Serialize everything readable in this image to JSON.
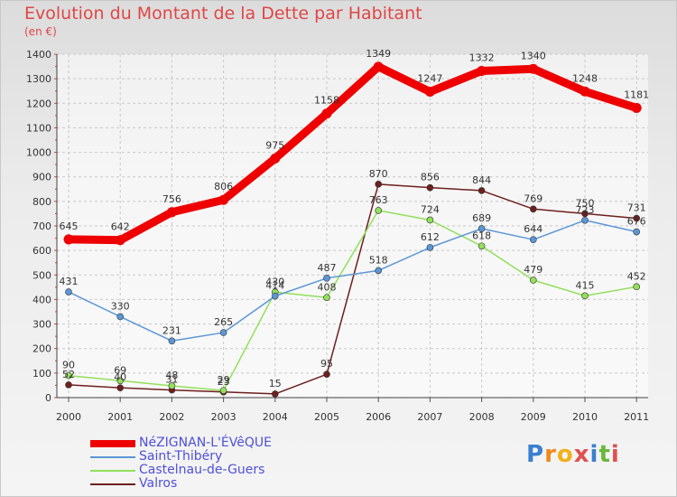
{
  "header": {
    "title": "Evolution du Montant de la Dette par Habitant",
    "subtitle": "(en €)"
  },
  "brand": {
    "text": "Proxiti"
  },
  "chart_data": {
    "type": "line",
    "title": "Evolution du Montant de la Dette par Habitant",
    "subtitle": "(en €)",
    "xlabel": "",
    "ylabel": "",
    "x": [
      "2000",
      "2001",
      "2002",
      "2003",
      "2004",
      "2005",
      "2006",
      "2007",
      "2008",
      "2009",
      "2010",
      "2011"
    ],
    "yticks": [
      "0",
      "100",
      "200",
      "300",
      "400",
      "500",
      "600",
      "700",
      "800",
      "900",
      "1000",
      "1100",
      "1200",
      "1300",
      "1400"
    ],
    "ylim": [
      0,
      1400
    ],
    "grid": true,
    "legend_position": "bottom-left",
    "series": [
      {
        "name": "NéZIGNAN-L'ÉVêQUE",
        "color": "#ee0000",
        "values": [
          645,
          642,
          756,
          806,
          975,
          1158,
          1349,
          1247,
          1332,
          1340,
          1248,
          1181
        ],
        "labels": [
          "645",
          "642",
          "756",
          "806",
          "975",
          "1158",
          "1349",
          "1247",
          "1332",
          "1340",
          "1248",
          "1181"
        ]
      },
      {
        "name": "Saint-Thibéry",
        "color": "#5b97d6",
        "values": [
          431,
          330,
          231,
          265,
          414,
          487,
          518,
          612,
          689,
          644,
          723,
          676
        ],
        "labels": [
          "431",
          "330",
          "231",
          "265",
          "414",
          "487",
          "518",
          "612",
          "689",
          "644",
          "723",
          "676"
        ]
      },
      {
        "name": "Castelnau-de-Guers",
        "color": "#92e05a",
        "values": [
          90,
          69,
          48,
          29,
          430,
          408,
          763,
          724,
          618,
          479,
          415,
          452
        ],
        "labels": [
          "90",
          "69",
          "48",
          "29",
          "430",
          "408",
          "763",
          "724",
          "618",
          "479",
          "415",
          "452"
        ]
      },
      {
        "name": "Valros",
        "color": "#6e1f1f",
        "values": [
          52,
          40,
          31,
          23,
          15,
          95,
          870,
          856,
          844,
          769,
          750,
          731
        ],
        "labels": [
          "52",
          "40",
          "31",
          "23",
          "15",
          "95",
          "870",
          "856",
          "844",
          "769",
          "750",
          "731"
        ]
      }
    ]
  }
}
